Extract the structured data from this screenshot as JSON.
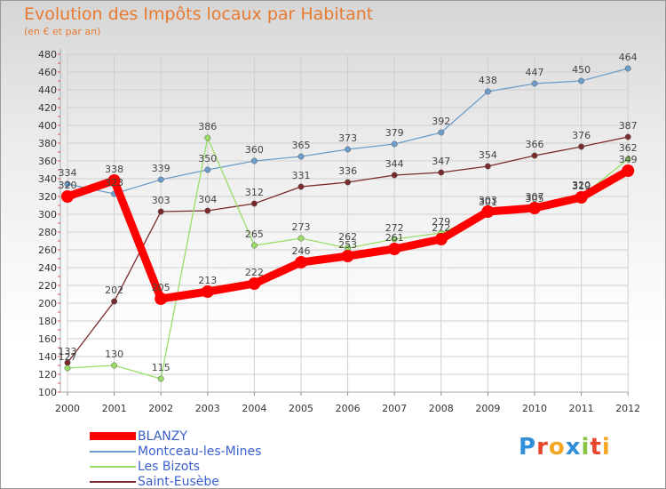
{
  "header": {
    "title": "Evolution des Impôts locaux par Habitant",
    "subtitle": "(en € et par an)"
  },
  "logo": {
    "text": "Proxiti"
  },
  "chart_data": {
    "type": "line",
    "title": "Evolution des Impôts locaux par Habitant",
    "subtitle": "(en € et par an)",
    "categories": [
      "2000",
      "2001",
      "2002",
      "2003",
      "2004",
      "2005",
      "2006",
      "2007",
      "2008",
      "2009",
      "2010",
      "2011",
      "2012"
    ],
    "ylim": [
      100,
      480
    ],
    "yticks": [
      100,
      120,
      140,
      160,
      180,
      200,
      220,
      240,
      260,
      280,
      300,
      320,
      340,
      360,
      380,
      400,
      420,
      440,
      460,
      480
    ],
    "grid": true,
    "legend_position": "bottom-left",
    "series": [
      {
        "name": "BLANZY",
        "color": "#ff0000",
        "emphasis": true,
        "values": [
          320,
          338,
          205,
          213,
          222,
          246,
          253,
          261,
          272,
          303,
          307,
          319,
          349
        ],
        "labels": [
          "320",
          "338",
          "205",
          "213",
          "222",
          "246",
          "253",
          "261",
          "272",
          "303",
          "307",
          "319",
          "349"
        ]
      },
      {
        "name": "Montceau-les-Mines",
        "color": "#6d9ecb",
        "values": [
          334,
          323,
          339,
          350,
          360,
          365,
          373,
          379,
          392,
          438,
          447,
          450,
          464
        ],
        "labels": [
          "334",
          "323",
          "339",
          "350",
          "360",
          "365",
          "373",
          "379",
          "392",
          "438",
          "447",
          "450",
          "464"
        ]
      },
      {
        "name": "Les Bizots",
        "color": "#99dd66",
        "values": [
          127,
          130,
          115,
          386,
          265,
          273,
          262,
          272,
          279,
          301,
          305,
          320,
          362
        ],
        "labels": [
          "127",
          "130",
          "115",
          "386",
          "265",
          "273",
          "262",
          "272",
          "279",
          "301",
          "305",
          "320",
          "362"
        ]
      },
      {
        "name": "Saint-Eusèbe",
        "color": "#7a2a2a",
        "values": [
          133,
          202,
          303,
          304,
          312,
          331,
          336,
          344,
          347,
          354,
          366,
          376,
          387
        ],
        "labels": [
          "133",
          "202",
          "303",
          "304",
          "312",
          "331",
          "336",
          "344",
          "347",
          "354",
          "366",
          "376",
          "387"
        ]
      }
    ]
  }
}
